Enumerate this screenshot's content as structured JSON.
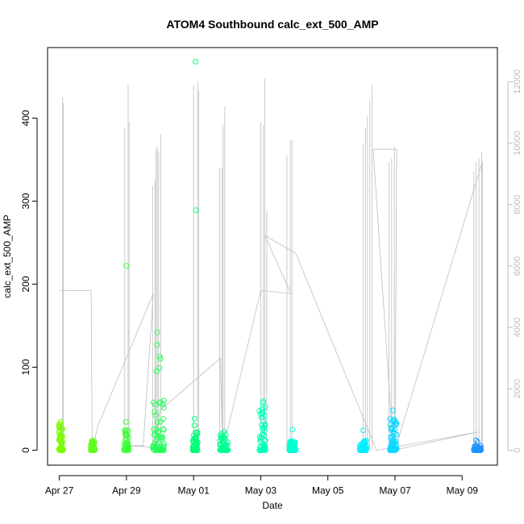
{
  "chart_data": {
    "type": "scatter",
    "title": "ATOM4 Southbound calc_ext_500_AMP",
    "xlabel": "Date",
    "ylabel": "calc_ext_500_AMP",
    "x_ticks": [
      "Apr 27",
      "Apr 29",
      "May 01",
      "May 03",
      "May 05",
      "May 07",
      "May 09"
    ],
    "y_ticks": [
      "0",
      "100",
      "200",
      "300",
      "400"
    ],
    "y2_ticks": [
      "0",
      "2000",
      "4000",
      "6000",
      "8000",
      "10000",
      "12000"
    ],
    "x_range_days": [
      -0.35,
      13.05
    ],
    "x_ticks_days": [
      0,
      2,
      4,
      6,
      8,
      10,
      12
    ],
    "ylim": [
      -18,
      485
    ],
    "y2lim": [
      -486.7,
      13115
    ],
    "grid": false,
    "legend": "none",
    "secondary_series_color": "#bebebe",
    "point_color_scale": [
      "#7cfc00",
      "#00ff7f",
      "#00ffff",
      "#1e90ff"
    ],
    "clusters": [
      {
        "center": 0.05,
        "width": 0.12,
        "max": 33,
        "outliers": [
          34,
          27
        ]
      },
      {
        "center": 1.0,
        "width": 0.12,
        "max": 12,
        "outliers": []
      },
      {
        "center": 2.0,
        "width": 0.14,
        "max": 28,
        "outliers": [
          222,
          34
        ]
      },
      {
        "center": 2.95,
        "width": 0.35,
        "max": 65,
        "outliers": [
          142,
          127,
          113,
          110,
          99,
          95
        ]
      },
      {
        "center": 4.05,
        "width": 0.15,
        "max": 25,
        "outliers": [
          468,
          289,
          38,
          30
        ]
      },
      {
        "center": 4.9,
        "width": 0.25,
        "max": 20,
        "outliers": [
          22
        ]
      },
      {
        "center": 6.05,
        "width": 0.18,
        "max": 55,
        "outliers": [
          59,
          57
        ]
      },
      {
        "center": 6.95,
        "width": 0.2,
        "max": 12,
        "outliers": [
          25
        ]
      },
      {
        "center": 9.05,
        "width": 0.2,
        "max": 12,
        "outliers": [
          24
        ]
      },
      {
        "center": 9.95,
        "width": 0.2,
        "max": 40,
        "outliers": [
          48,
          35
        ]
      },
      {
        "center": 12.45,
        "width": 0.22,
        "max": 6,
        "outliers": [
          12,
          10
        ]
      }
    ],
    "secondary_spikes": [
      {
        "x": 0.1,
        "y": 11500
      },
      {
        "x": 0.12,
        "y": 11300
      },
      {
        "x": 1.95,
        "y": 10500
      },
      {
        "x": 2.05,
        "y": 11900
      },
      {
        "x": 2.08,
        "y": 10700
      },
      {
        "x": 2.78,
        "y": 8600
      },
      {
        "x": 2.85,
        "y": 8800
      },
      {
        "x": 2.88,
        "y": 9800
      },
      {
        "x": 2.92,
        "y": 9900
      },
      {
        "x": 2.96,
        "y": 9700
      },
      {
        "x": 3.02,
        "y": 10300
      },
      {
        "x": 4.0,
        "y": 11900
      },
      {
        "x": 4.12,
        "y": 12000
      },
      {
        "x": 4.15,
        "y": 11700
      },
      {
        "x": 4.78,
        "y": 9200
      },
      {
        "x": 4.85,
        "y": 9200
      },
      {
        "x": 4.88,
        "y": 10600
      },
      {
        "x": 4.93,
        "y": 11200
      },
      {
        "x": 6.0,
        "y": 10700
      },
      {
        "x": 6.08,
        "y": 10600
      },
      {
        "x": 6.12,
        "y": 12100
      },
      {
        "x": 6.18,
        "y": 7800
      },
      {
        "x": 6.78,
        "y": 9600
      },
      {
        "x": 6.88,
        "y": 10100
      },
      {
        "x": 6.93,
        "y": 10100
      },
      {
        "x": 9.05,
        "y": 10000
      },
      {
        "x": 9.12,
        "y": 10500
      },
      {
        "x": 9.18,
        "y": 10900
      },
      {
        "x": 9.25,
        "y": 11400
      },
      {
        "x": 9.32,
        "y": 11900
      },
      {
        "x": 9.82,
        "y": 9400
      },
      {
        "x": 9.9,
        "y": 9500
      },
      {
        "x": 9.98,
        "y": 9900
      },
      {
        "x": 12.35,
        "y": 9100
      },
      {
        "x": 12.42,
        "y": 9400
      },
      {
        "x": 12.5,
        "y": 9500
      },
      {
        "x": 12.58,
        "y": 9700
      }
    ],
    "secondary_path": [
      {
        "x": 0.0,
        "y": 5200
      },
      {
        "x": 0.95,
        "y": 5200
      },
      {
        "x": 0.98,
        "y": 0
      },
      {
        "x": 1.15,
        "y": 800
      },
      {
        "x": 2.8,
        "y": 5100
      },
      {
        "x": 2.5,
        "y": 150
      },
      {
        "x": 2.0,
        "y": 150
      },
      {
        "x": 2.85,
        "y": 100
      },
      {
        "x": 3.0,
        "y": 1300
      },
      {
        "x": 4.8,
        "y": 3000
      },
      {
        "x": 4.85,
        "y": 600
      },
      {
        "x": 5.0,
        "y": 600
      },
      {
        "x": 6.0,
        "y": 5200
      },
      {
        "x": 6.9,
        "y": 5100
      },
      {
        "x": 6.12,
        "y": 7000
      },
      {
        "x": 7.05,
        "y": 6400
      },
      {
        "x": 9.45,
        "y": 0
      },
      {
        "x": 12.5,
        "y": 600
      },
      {
        "x": 9.95,
        "y": 0
      },
      {
        "x": 9.35,
        "y": 9800
      },
      {
        "x": 10.05,
        "y": 9800
      },
      {
        "x": 10.0,
        "y": 0
      },
      {
        "x": 12.6,
        "y": 9400
      },
      {
        "x": 12.6,
        "y": 0
      }
    ]
  }
}
